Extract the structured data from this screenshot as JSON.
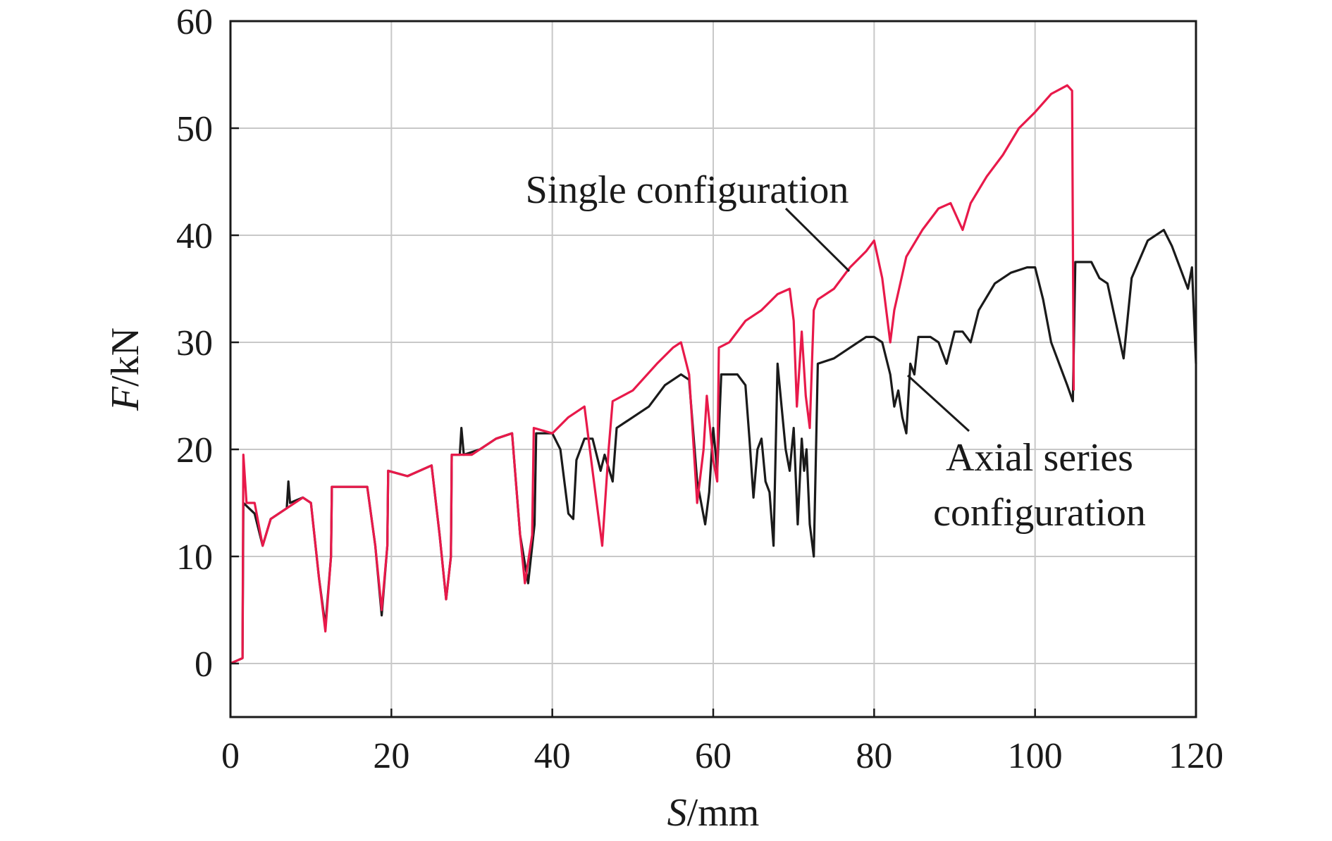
{
  "chart_data": {
    "type": "line",
    "xlabel": {
      "italic": "S",
      "unit": "/mm"
    },
    "ylabel": {
      "italic": "F",
      "unit": "/kN"
    },
    "xlim": [
      0,
      120
    ],
    "ylim": [
      -5,
      60
    ],
    "xticks": [
      0,
      20,
      40,
      60,
      80,
      100,
      120
    ],
    "yticks": [
      0,
      10,
      20,
      30,
      40,
      50,
      60
    ],
    "grid": true,
    "annotations": [
      {
        "id": "single",
        "lines": [
          "Single configuration"
        ],
        "points_to_series": "single"
      },
      {
        "id": "axial",
        "lines": [
          "Axial series",
          "configuration"
        ],
        "points_to_series": "axial"
      }
    ],
    "series": [
      {
        "id": "single",
        "color": "#e8194a",
        "points": [
          [
            0,
            0
          ],
          [
            1.5,
            0.5
          ],
          [
            1.6,
            19.5
          ],
          [
            2,
            15
          ],
          [
            3,
            15
          ],
          [
            4,
            11
          ],
          [
            5,
            13.5
          ],
          [
            7,
            14.5
          ],
          [
            9,
            15.5
          ],
          [
            10,
            15
          ],
          [
            11,
            8
          ],
          [
            11.8,
            3
          ],
          [
            12.5,
            10
          ],
          [
            12.6,
            16.5
          ],
          [
            14,
            16.5
          ],
          [
            17,
            16.5
          ],
          [
            18,
            11
          ],
          [
            18.8,
            5
          ],
          [
            19.5,
            11
          ],
          [
            19.6,
            18
          ],
          [
            22,
            17.5
          ],
          [
            25,
            18.5
          ],
          [
            26,
            12
          ],
          [
            26.8,
            6
          ],
          [
            27.4,
            10
          ],
          [
            27.5,
            19.5
          ],
          [
            30,
            19.5
          ],
          [
            33,
            21
          ],
          [
            35,
            21.5
          ],
          [
            36,
            12
          ],
          [
            36.6,
            7.5
          ],
          [
            37.5,
            12
          ],
          [
            37.7,
            22
          ],
          [
            40,
            21.5
          ],
          [
            42,
            23
          ],
          [
            44,
            24
          ],
          [
            45,
            18
          ],
          [
            46.2,
            11
          ],
          [
            47,
            20
          ],
          [
            47.5,
            24.5
          ],
          [
            50,
            25.5
          ],
          [
            53,
            28
          ],
          [
            55,
            29.5
          ],
          [
            56,
            30
          ],
          [
            57,
            27
          ],
          [
            58,
            15
          ],
          [
            58.8,
            20
          ],
          [
            59.2,
            25
          ],
          [
            60,
            19
          ],
          [
            60.5,
            17
          ],
          [
            60.7,
            29.5
          ],
          [
            62,
            30
          ],
          [
            64,
            32
          ],
          [
            66,
            33
          ],
          [
            68,
            34.5
          ],
          [
            69.5,
            35
          ],
          [
            70,
            32
          ],
          [
            70.4,
            24
          ],
          [
            71,
            31
          ],
          [
            71.5,
            25
          ],
          [
            72,
            22
          ],
          [
            72.5,
            33
          ],
          [
            73,
            34
          ],
          [
            75,
            35
          ],
          [
            77,
            37
          ],
          [
            79,
            38.5
          ],
          [
            80,
            39.5
          ],
          [
            81,
            36
          ],
          [
            82,
            30
          ],
          [
            82.5,
            33
          ],
          [
            84,
            38
          ],
          [
            86,
            40.5
          ],
          [
            88,
            42.5
          ],
          [
            89.5,
            43
          ],
          [
            91,
            40.5
          ],
          [
            92,
            43
          ],
          [
            94,
            45.5
          ],
          [
            96,
            47.5
          ],
          [
            98,
            50
          ],
          [
            100,
            51.5
          ],
          [
            102,
            53.2
          ],
          [
            104,
            54
          ],
          [
            104.6,
            53.5
          ],
          [
            104.8,
            25.5
          ]
        ]
      },
      {
        "id": "axial",
        "color": "#1a1a1a",
        "points": [
          [
            0,
            0
          ],
          [
            1.5,
            0.5
          ],
          [
            1.6,
            15
          ],
          [
            3,
            14
          ],
          [
            4,
            11
          ],
          [
            5,
            13.5
          ],
          [
            7,
            14.5
          ],
          [
            7.2,
            17
          ],
          [
            7.4,
            15
          ],
          [
            9,
            15.5
          ],
          [
            10,
            15
          ],
          [
            11,
            8
          ],
          [
            11.8,
            3.5
          ],
          [
            12.5,
            10
          ],
          [
            12.6,
            16.5
          ],
          [
            14,
            16.5
          ],
          [
            17,
            16.5
          ],
          [
            18,
            11
          ],
          [
            18.8,
            4.5
          ],
          [
            19.5,
            11
          ],
          [
            19.6,
            18
          ],
          [
            22,
            17.5
          ],
          [
            25,
            18.5
          ],
          [
            26,
            12
          ],
          [
            26.8,
            6
          ],
          [
            27.4,
            10
          ],
          [
            27.5,
            19.5
          ],
          [
            28.5,
            19.5
          ],
          [
            28.7,
            22
          ],
          [
            29,
            19.5
          ],
          [
            31,
            20
          ],
          [
            33,
            21
          ],
          [
            35,
            21.5
          ],
          [
            36,
            12
          ],
          [
            37,
            7.5
          ],
          [
            37.8,
            13
          ],
          [
            38,
            21.5
          ],
          [
            40,
            21.5
          ],
          [
            41,
            20
          ],
          [
            42,
            14
          ],
          [
            42.6,
            13.5
          ],
          [
            43,
            19
          ],
          [
            44,
            21
          ],
          [
            45,
            21
          ],
          [
            46,
            18
          ],
          [
            46.5,
            19.5
          ],
          [
            47.5,
            17
          ],
          [
            48,
            22
          ],
          [
            50,
            23
          ],
          [
            52,
            24
          ],
          [
            54,
            26
          ],
          [
            56,
            27
          ],
          [
            57,
            26.5
          ],
          [
            58,
            17
          ],
          [
            59,
            13
          ],
          [
            59.5,
            16
          ],
          [
            60,
            22
          ],
          [
            60.5,
            18
          ],
          [
            61,
            27
          ],
          [
            63,
            27
          ],
          [
            64,
            26
          ],
          [
            64.5,
            21
          ],
          [
            65,
            15.5
          ],
          [
            65.5,
            20
          ],
          [
            66,
            21
          ],
          [
            66.5,
            17
          ],
          [
            67,
            16
          ],
          [
            67.5,
            11
          ],
          [
            68,
            28
          ],
          [
            68.5,
            24
          ],
          [
            69,
            20
          ],
          [
            69.5,
            18
          ],
          [
            70,
            22
          ],
          [
            70.5,
            13
          ],
          [
            71,
            21
          ],
          [
            71.3,
            18
          ],
          [
            71.6,
            20
          ],
          [
            72,
            13
          ],
          [
            72.5,
            10
          ],
          [
            73,
            28
          ],
          [
            75,
            28.5
          ],
          [
            77,
            29.5
          ],
          [
            79,
            30.5
          ],
          [
            80,
            30.5
          ],
          [
            81,
            30
          ],
          [
            82,
            27
          ],
          [
            82.5,
            24
          ],
          [
            83,
            25.5
          ],
          [
            83.5,
            23
          ],
          [
            84,
            21.5
          ],
          [
            84.5,
            28
          ],
          [
            85,
            27
          ],
          [
            85.5,
            30.5
          ],
          [
            87,
            30.5
          ],
          [
            88,
            30
          ],
          [
            89,
            28
          ],
          [
            90,
            31
          ],
          [
            91,
            31
          ],
          [
            92,
            30
          ],
          [
            93,
            33
          ],
          [
            95,
            35.5
          ],
          [
            97,
            36.5
          ],
          [
            99,
            37
          ],
          [
            100,
            37
          ],
          [
            101,
            34
          ],
          [
            102,
            30
          ],
          [
            103,
            28
          ],
          [
            104,
            26
          ],
          [
            104.7,
            24.5
          ],
          [
            105,
            37.5
          ],
          [
            107,
            37.5
          ],
          [
            108,
            36
          ],
          [
            109,
            35.5
          ],
          [
            110,
            32
          ],
          [
            111,
            28.5
          ],
          [
            112,
            36
          ],
          [
            114,
            39.5
          ],
          [
            116,
            40.5
          ],
          [
            117,
            39
          ],
          [
            118,
            37
          ],
          [
            119,
            35
          ],
          [
            119.5,
            37
          ],
          [
            120,
            28
          ]
        ]
      }
    ]
  }
}
